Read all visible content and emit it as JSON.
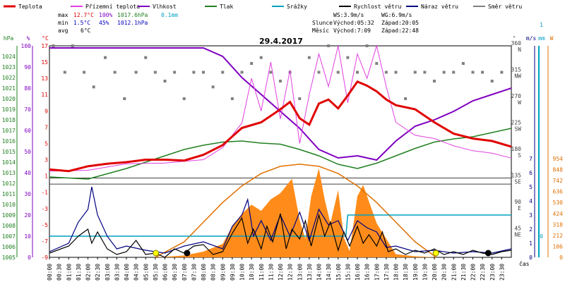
{
  "chart_data": {
    "type": "line",
    "title": "29.4.2017",
    "legend": [
      {
        "label": "Teplota",
        "color": "#e00000"
      },
      {
        "label": "Přízemní teplota",
        "color": "#e040e0"
      },
      {
        "label": "Vlhkost",
        "color": "#8000c0"
      },
      {
        "label": "Tlak",
        "color": "#208020"
      },
      {
        "label": "Srážky",
        "color": "#00a0c0"
      },
      {
        "label": "Rychlost větru",
        "color": "#000000"
      },
      {
        "label": "Náraz větru",
        "color": "#000080"
      },
      {
        "label": "Směr větru",
        "color": "#808080"
      }
    ],
    "stats": {
      "max_label": "max",
      "max_temp": "12.7°C",
      "max_hum": "100%",
      "max_pres": "1017.6hPa",
      "max_rain": "0.1mm",
      "min_label": "min",
      "min_temp": "1.5°C",
      "min_hum": "45%",
      "min_pres": "1012.1hPa",
      "avg_label": "avg",
      "avg_temp": "6°C"
    },
    "wind_stats": {
      "ws": "WS:3.9m/s",
      "wg": "WG:6.9m/s"
    },
    "sun": {
      "label": "Slunce",
      "rise": "Východ:05:32",
      "set": "Západ:20:05"
    },
    "moon": {
      "label": "Měsíc",
      "rise": "Východ:7:09",
      "set": "Západ:22:48"
    },
    "axis_titles": {
      "hpa": "hPa",
      "pct": "%",
      "degc": "°C",
      "ms": "m/s",
      "mm": "mm",
      "w": "W",
      "deg": "°",
      "time": "čas"
    },
    "x_ticks": [
      "00:00",
      "00:30",
      "01:00",
      "01:30",
      "02:00",
      "02:30",
      "03:00",
      "03:30",
      "04:00",
      "04:30",
      "05:00",
      "05:30",
      "06:00",
      "06:30",
      "07:00",
      "07:30",
      "08:00",
      "08:30",
      "09:00",
      "09:30",
      "10:00",
      "10:30",
      "11:00",
      "11:30",
      "12:00",
      "12:30",
      "13:00",
      "13:30",
      "14:00",
      "14:30",
      "15:00",
      "15:30",
      "16:00",
      "16:30",
      "17:00",
      "17:30",
      "18:00",
      "18:30",
      "19:00",
      "19:30",
      "20:00",
      "20:30",
      "21:00",
      "21:30",
      "22:00",
      "22:30",
      "23:00",
      "23:30"
    ],
    "pressure_ticks": [
      1024,
      1023,
      1022,
      1021,
      1020,
      1019,
      1018,
      1017,
      1016,
      1015,
      1014,
      1013,
      1012,
      1011,
      1010,
      1009,
      1008,
      1007,
      1006,
      1005
    ],
    "humidity_ticks": [
      100,
      90,
      80,
      70,
      60,
      50,
      40,
      30,
      20,
      10,
      0
    ],
    "temp_ticks": [
      17,
      15,
      13,
      11,
      9,
      7,
      5,
      3,
      1,
      -1,
      -3,
      -5,
      -7,
      -9
    ],
    "wind_ticks": [
      7,
      6,
      5,
      4,
      3,
      2,
      1,
      0
    ],
    "solar_ticks": [
      954,
      848,
      742,
      636,
      530,
      424,
      318,
      212,
      106,
      0
    ],
    "rain_ticks": [
      1,
      0
    ],
    "dir_ticks": [
      {
        "deg": "360",
        "dir": "N"
      },
      {
        "deg": "315",
        "dir": "NW"
      },
      {
        "deg": "270",
        "dir": "W"
      },
      {
        "deg": "225",
        "dir": "SW"
      },
      {
        "deg": "180",
        "dir": "S"
      },
      {
        "deg": "135",
        "dir": "SE"
      },
      {
        "deg": "90",
        "dir": "E"
      },
      {
        "deg": "45",
        "dir": "NE"
      }
    ],
    "temperature": {
      "x": [
        0,
        1,
        2,
        3,
        4,
        5,
        6,
        7,
        8,
        9,
        10,
        11,
        12,
        12.5,
        13,
        13.5,
        14,
        14.5,
        15,
        15.5,
        16,
        16.5,
        17,
        17.5,
        18,
        19,
        20,
        21,
        22,
        23,
        24
      ],
      "y": [
        1.8,
        1.6,
        2.2,
        2.5,
        2.7,
        3.0,
        3.0,
        2.9,
        3.6,
        4.8,
        6.9,
        7.6,
        9.2,
        10.1,
        8.1,
        7.3,
        9.9,
        10.4,
        9.3,
        10.9,
        12.6,
        12.1,
        11.4,
        10.4,
        9.7,
        9.2,
        7.6,
        6.2,
        5.6,
        5.3,
        4.6
      ]
    },
    "ground_temperature": {
      "x": [
        0,
        2,
        4,
        6,
        8,
        9,
        10,
        10.5,
        11,
        11.5,
        12,
        12.5,
        13,
        13.5,
        14,
        14.5,
        15,
        15.5,
        16,
        16.5,
        17,
        17.5,
        18,
        19,
        20,
        21,
        22,
        23,
        24
      ],
      "y": [
        1.6,
        1.7,
        2.5,
        2.6,
        3.0,
        4.5,
        7.5,
        13,
        9,
        15,
        8,
        14,
        5,
        11,
        16,
        12,
        17,
        10,
        16,
        13,
        17,
        12,
        7.6,
        6,
        5.6,
        4.7,
        4.1,
        3.8,
        3.2
      ]
    },
    "humidity": {
      "x": [
        0,
        2,
        4,
        6,
        8,
        9,
        10,
        11,
        12,
        13,
        14,
        15,
        16,
        17,
        18,
        19,
        20,
        21,
        22,
        23,
        24
      ],
      "y": [
        99,
        99,
        99,
        99,
        99,
        95,
        85,
        77,
        69,
        61,
        51,
        47,
        48,
        46,
        55,
        62,
        65,
        69,
        74,
        77,
        80
      ]
    },
    "pressure": {
      "x": [
        0,
        2,
        4,
        6,
        7,
        8,
        9,
        10,
        11,
        12,
        13,
        14,
        15,
        16,
        17,
        18,
        19,
        20,
        21,
        22,
        23,
        24
      ],
      "y": [
        1012.6,
        1012.4,
        1013.4,
        1014.6,
        1015.2,
        1015.6,
        1015.9,
        1016.0,
        1015.8,
        1015.7,
        1015.2,
        1014.6,
        1013.8,
        1013.4,
        1013.9,
        1014.6,
        1015.3,
        1015.9,
        1016.2,
        1016.4,
        1016.8,
        1017.2
      ]
    },
    "wind_speed": {
      "x": [
        0,
        1,
        1.5,
        2,
        2.2,
        2.5,
        3,
        3.5,
        4,
        4.5,
        5,
        5.5,
        6,
        6.5,
        7,
        7.5,
        8,
        8.5,
        9,
        9.5,
        10,
        10.3,
        10.6,
        11,
        11.3,
        11.6,
        12,
        12.3,
        12.6,
        13,
        13.3,
        13.6,
        14,
        14.3,
        14.6,
        15,
        15.3,
        15.6,
        16,
        16.3,
        16.6,
        17,
        17.3,
        17.6,
        18,
        18.5,
        19,
        19.5,
        20,
        20.5,
        21,
        21.5,
        22,
        22.5,
        23,
        23.5,
        24
      ],
      "y": [
        0.3,
        0.8,
        1.5,
        2.0,
        1.0,
        1.8,
        0.6,
        0.2,
        0.4,
        1.2,
        0.2,
        0.3,
        0.0,
        0.6,
        0.3,
        0.8,
        0.9,
        0.2,
        0.4,
        1.7,
        2.8,
        1.0,
        2.0,
        0.6,
        2.2,
        1.1,
        3.1,
        0.6,
        2.0,
        1.3,
        2.6,
        0.8,
        3.0,
        1.5,
        2.5,
        0.5,
        1.8,
        0.8,
        2.2,
        1.0,
        1.6,
        0.8,
        1.8,
        0.4,
        0.6,
        0.2,
        0.5,
        0.3,
        0.6,
        0.2,
        0.4,
        0.2,
        0.5,
        0.3,
        0.2,
        0.4,
        0.5
      ]
    },
    "wind_gust": {
      "x": [
        0,
        1,
        1.5,
        2,
        2.2,
        2.5,
        3,
        3.5,
        4,
        5,
        6,
        7,
        8,
        9,
        9.5,
        10,
        10.3,
        10.6,
        11,
        11.5,
        12,
        12.5,
        13,
        13.5,
        14,
        14.5,
        15,
        15.5,
        16,
        16.5,
        17,
        17.5,
        18,
        19,
        20,
        21,
        22,
        23,
        24
      ],
      "y": [
        0.4,
        1.0,
        2.5,
        3.4,
        5.0,
        3.0,
        1.5,
        0.6,
        0.8,
        0.5,
        0.3,
        0.8,
        1.1,
        0.6,
        2.2,
        3.0,
        4.1,
        1.5,
        2.6,
        1.2,
        3.0,
        1.5,
        3.2,
        1.2,
        3.4,
        2.3,
        2.6,
        1.2,
        2.6,
        2.1,
        1.8,
        0.7,
        0.8,
        0.4,
        0.5,
        0.3,
        0.4,
        0.3,
        0.6
      ]
    },
    "solar_radiation": {
      "x": [
        0,
        5.5,
        6,
        7,
        8,
        9,
        9.5,
        10,
        10.5,
        11,
        11.5,
        12,
        12.3,
        12.6,
        13,
        13.3,
        13.6,
        14,
        14.3,
        14.6,
        15,
        15.3,
        15.6,
        16,
        16.3,
        16.6,
        17,
        17.5,
        18,
        19,
        20.1,
        24
      ],
      "y": [
        0,
        0,
        5,
        18,
        55,
        130,
        300,
        420,
        510,
        450,
        560,
        620,
        690,
        760,
        360,
        180,
        590,
        860,
        560,
        330,
        650,
        190,
        60,
        590,
        700,
        540,
        330,
        180,
        30,
        10,
        0,
        0
      ]
    },
    "clear_sky_radiation": {
      "x": [
        5.5,
        7,
        8,
        9,
        10,
        11,
        12,
        13,
        14,
        15,
        16,
        17,
        18,
        19,
        20.1
      ],
      "y": [
        0,
        150,
        340,
        530,
        690,
        810,
        880,
        900,
        880,
        810,
        690,
        530,
        340,
        150,
        0
      ]
    },
    "rain": {
      "x": [
        0,
        15.4,
        15.5,
        24
      ],
      "y": [
        0,
        0,
        0.1,
        0.1
      ]
    },
    "wind_direction": {
      "x": [
        0.2,
        0.8,
        1.2,
        1.8,
        2.3,
        2.9,
        3.4,
        3.9,
        4.5,
        5,
        5.5,
        6,
        6.5,
        7,
        7.5,
        8,
        8.5,
        9,
        9.5,
        10,
        10.5,
        11,
        11.5,
        12,
        12.5,
        13,
        13.5,
        14,
        14.5,
        15,
        15.5,
        16,
        16.5,
        17,
        17.5,
        18,
        18.5,
        19,
        19.5,
        20,
        20.5,
        21,
        21.5,
        22,
        22.5,
        23,
        23.5
      ],
      "y": [
        360,
        315,
        360,
        315,
        290,
        340,
        315,
        270,
        315,
        340,
        315,
        300,
        315,
        270,
        315,
        315,
        290,
        315,
        270,
        315,
        330,
        340,
        315,
        300,
        315,
        270,
        340,
        315,
        360,
        315,
        340,
        315,
        360,
        330,
        315,
        315,
        270,
        315,
        315,
        300,
        315,
        315,
        330,
        315,
        315,
        300,
        315
      ]
    },
    "sun_markers": [
      5.53,
      20.08
    ],
    "moon_markers": [
      7.15,
      22.8
    ],
    "xlim": [
      0,
      24
    ],
    "grid": "off"
  }
}
